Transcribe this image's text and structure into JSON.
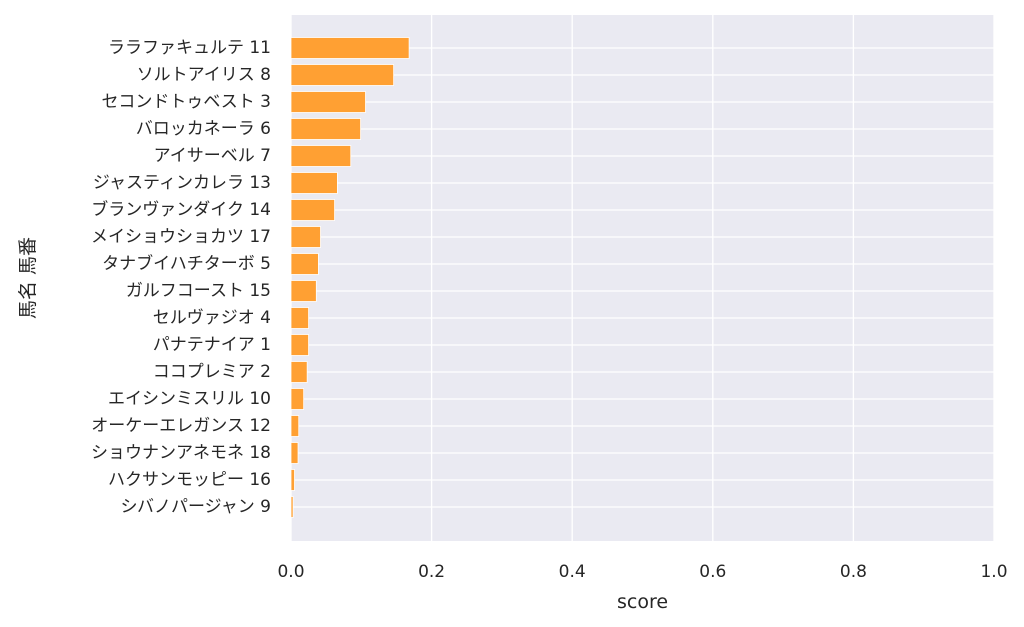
{
  "chart_data": {
    "type": "bar",
    "orientation": "horizontal",
    "categories": [
      "ララファキュルテ 11",
      "ソルトアイリス 8",
      "セコンドトゥベスト 3",
      "バロッカネーラ 6",
      "アイサーベル 7",
      "ジャスティンカレラ 13",
      "ブランヴァンダイク 14",
      "メイショウショカツ 17",
      "タナブイハチターボ 5",
      "ガルフコースト 15",
      "セルヴァジオ 4",
      "パナテナイア 1",
      "ココプレミア 2",
      "エイシンミスリル 10",
      "オーケーエレガンス 12",
      "ショウナンアネモネ 18",
      "ハクサンモッピー 16",
      "シバノパージャン 9"
    ],
    "values": [
      0.168,
      0.146,
      0.106,
      0.099,
      0.085,
      0.066,
      0.062,
      0.042,
      0.039,
      0.036,
      0.025,
      0.025,
      0.023,
      0.018,
      0.011,
      0.01,
      0.005,
      0.003
    ],
    "xlabel": "score",
    "ylabel": "馬名 馬番",
    "xlim": [
      0,
      1.0
    ],
    "xticks": [
      "0.0",
      "0.2",
      "0.4",
      "0.6",
      "0.8",
      "1.0"
    ],
    "grid": true,
    "colors": {
      "bar": "#ffa033",
      "plot_background": "#eaeaf2",
      "grid": "#ffffff",
      "text": "#262626"
    }
  }
}
